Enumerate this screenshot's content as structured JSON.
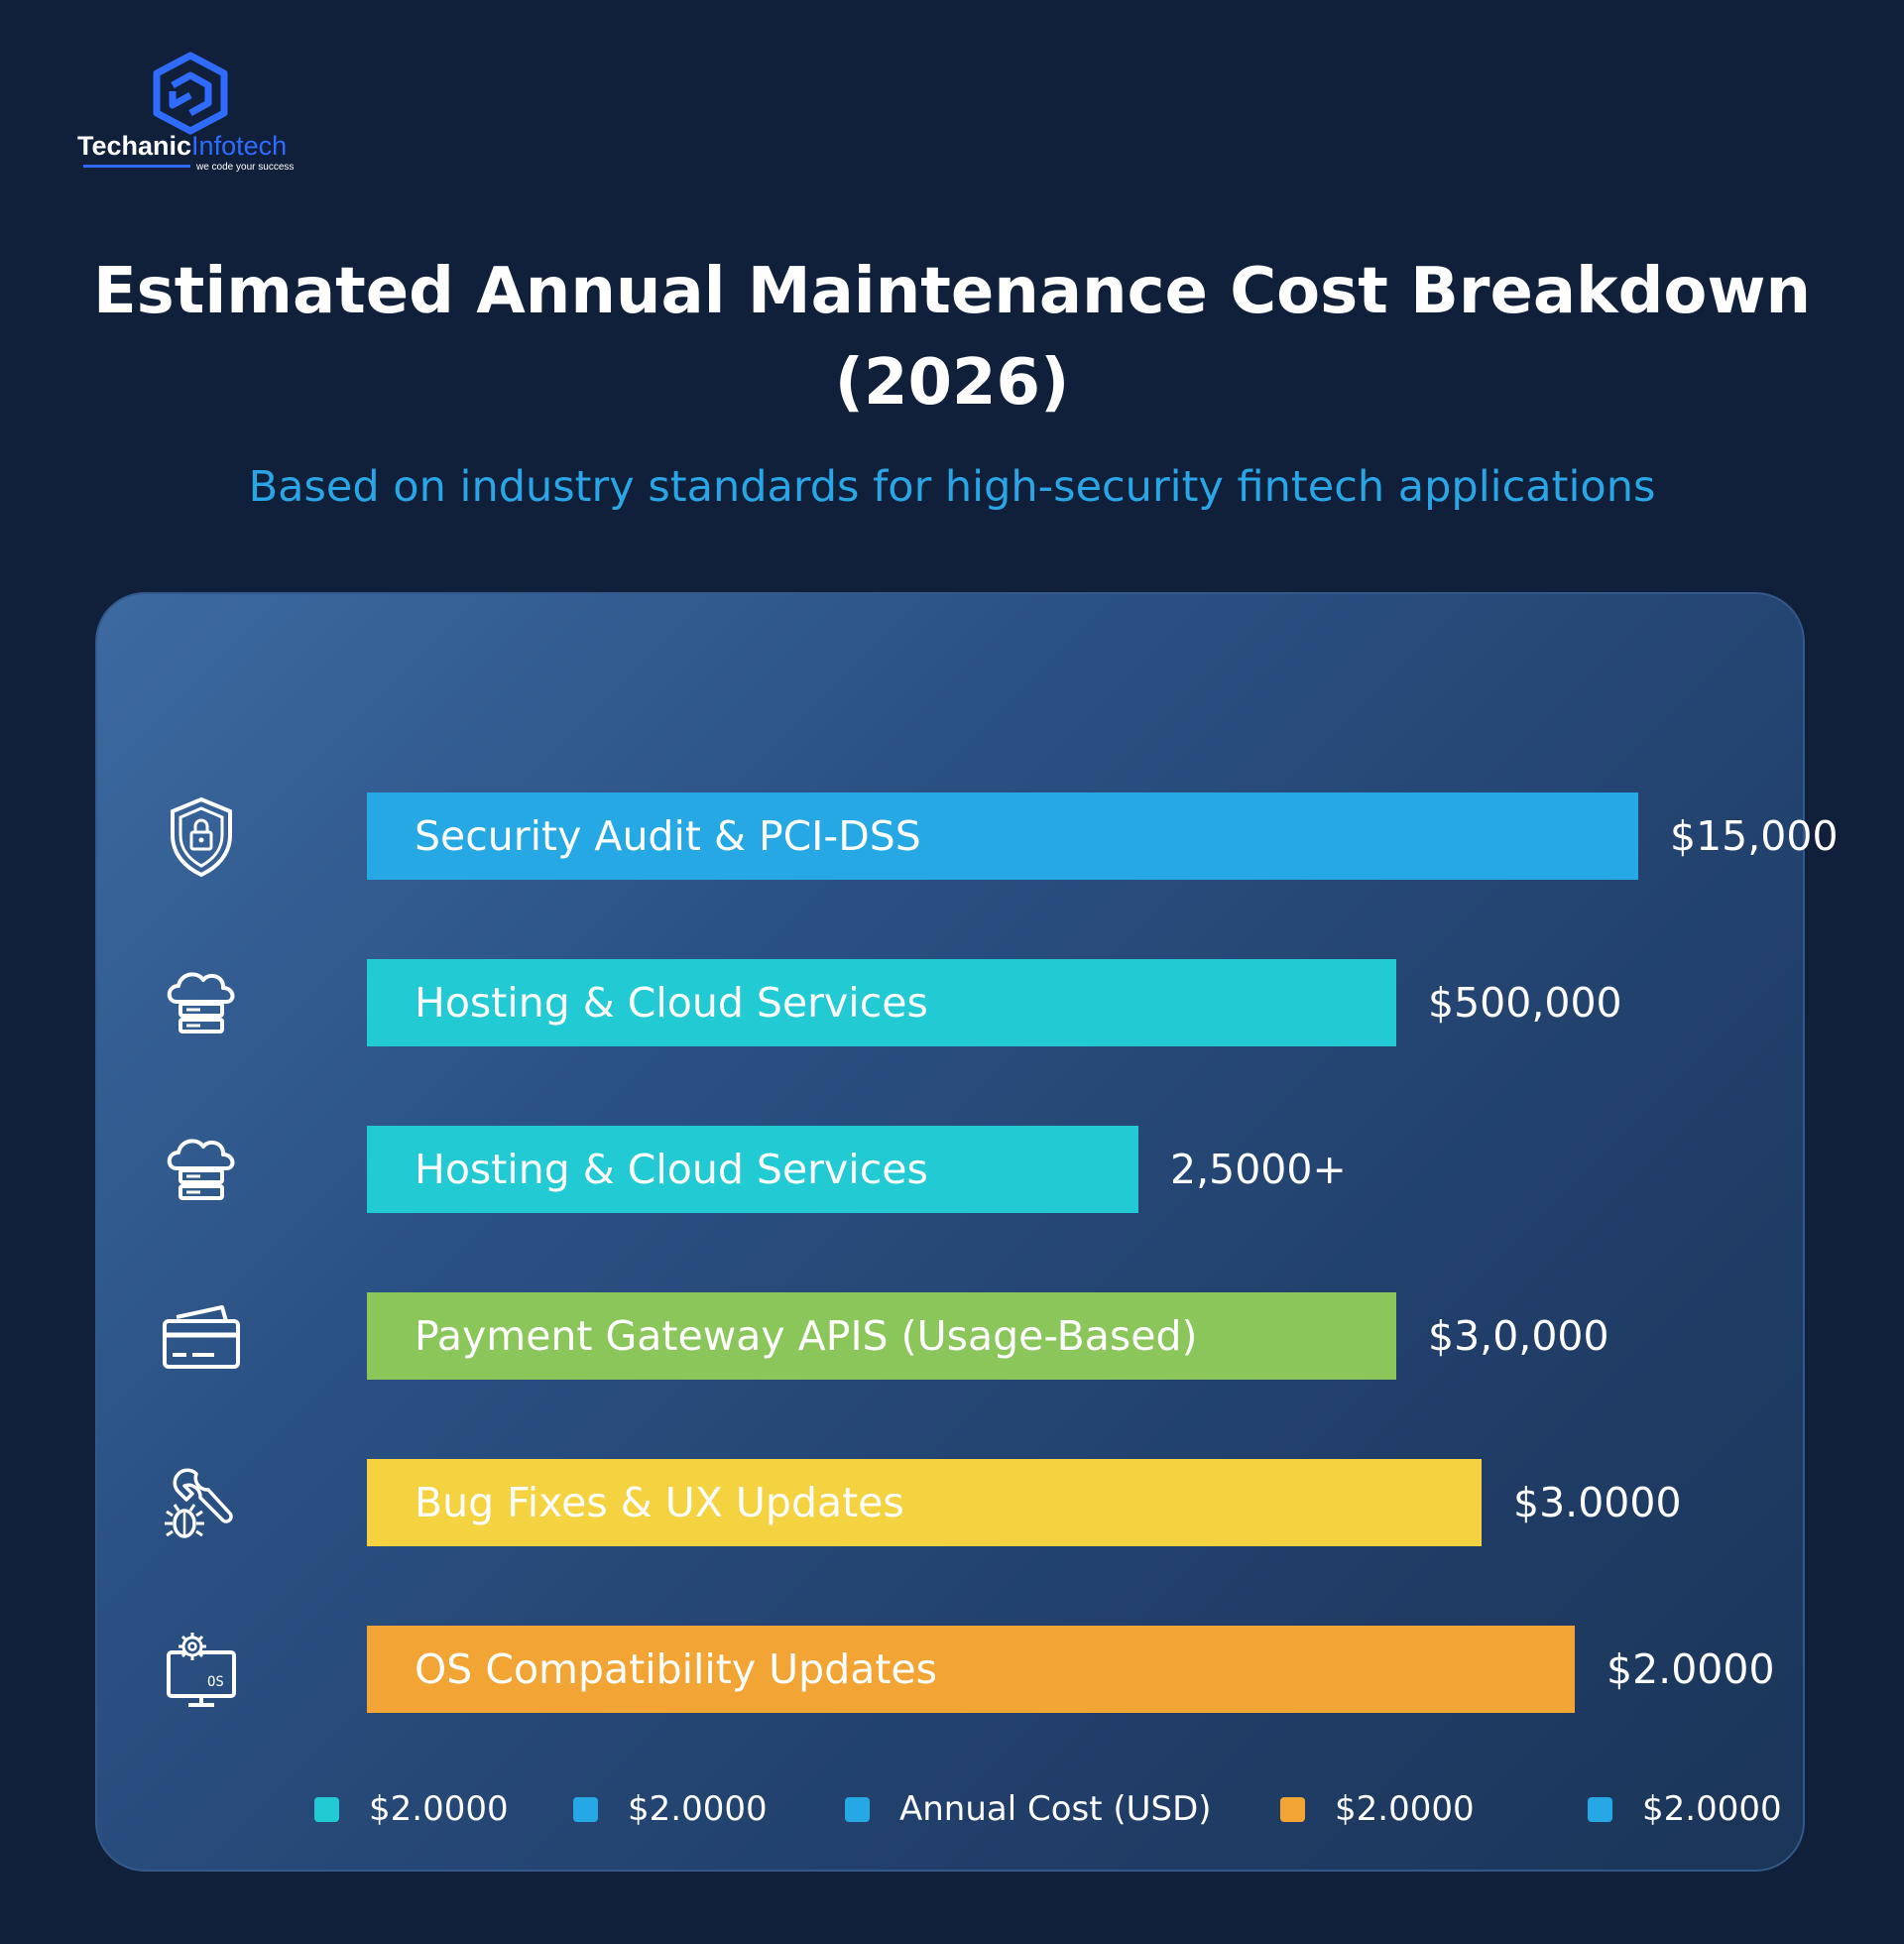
{
  "brand": {
    "name_part1": "Techanic",
    "name_part2": "Infotech",
    "tagline": "we code your success"
  },
  "chart_data": {
    "type": "bar",
    "orientation": "horizontal",
    "title": "Estimated Annual Maintenance Cost Breakdown (2026)",
    "subtitle": "Based on industry standards for high-security fintech applications",
    "categories": [
      "Security Audit & PCI-DSS",
      "Hosting & Cloud Services",
      "Hosting & Cloud Services",
      "Payment Gateway APIS (Usage-Based)",
      "Bug Fixes & UX Updates",
      "OS Compatibility Updates"
    ],
    "value_labels": [
      "$15,000",
      "$500,000",
      "2,5000+",
      "$3,0,000",
      "$3.0000",
      "$2.0000"
    ],
    "bar_lengths_relative": [
      1.0,
      0.81,
      0.607,
      0.81,
      0.877,
      0.95
    ],
    "colors": [
      "#25a8e3",
      "#22cbd3",
      "#22cbd3",
      "#8ac65a",
      "#f5d23f",
      "#f2a534"
    ],
    "icons": [
      "shield-lock-icon",
      "cloud-server-icon",
      "cloud-server-icon",
      "credit-card-icon",
      "bug-wrench-icon",
      "os-gear-monitor-icon"
    ],
    "legend": [
      {
        "label": "$2.0000",
        "color": "#22cbd3"
      },
      {
        "label": "$2.0000",
        "color": "#25a8e3"
      },
      {
        "label": "Annual Cost (USD)",
        "color": "#25a8e3"
      },
      {
        "label": "$2.0000",
        "color": "#f2a534"
      },
      {
        "label": "$2.0000",
        "color": "#25a8e3"
      }
    ],
    "grid": false
  }
}
